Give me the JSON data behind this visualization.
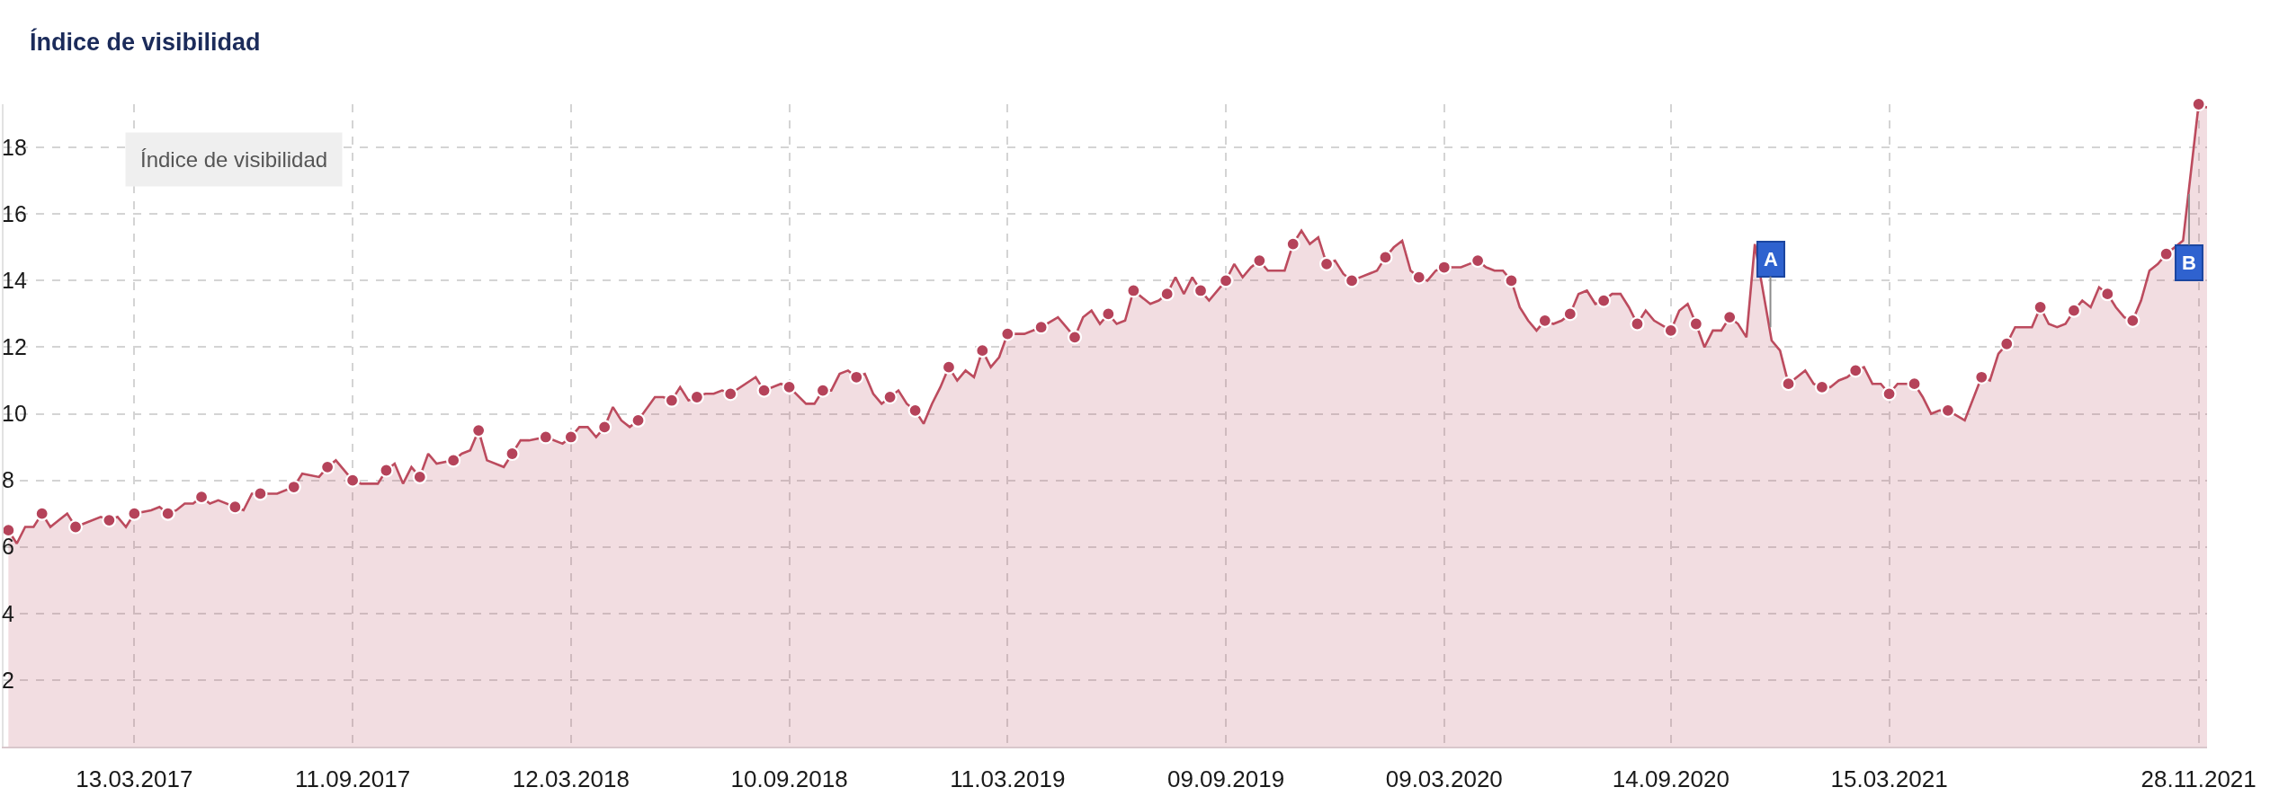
{
  "chart_data": {
    "type": "area",
    "title": "Índice de visibilidad",
    "xlim": [
      "2016-11-24",
      "2021-12-05"
    ],
    "xticks": [
      {
        "value": "2017-03-13",
        "label": "13.03.2017"
      },
      {
        "value": "2017-09-11",
        "label": "11.09.2017"
      },
      {
        "value": "2018-03-12",
        "label": "12.03.2018"
      },
      {
        "value": "2018-09-10",
        "label": "10.09.2018"
      },
      {
        "value": "2019-03-11",
        "label": "11.03.2019"
      },
      {
        "value": "2019-09-09",
        "label": "09.09.2019"
      },
      {
        "value": "2020-03-09",
        "label": "09.03.2020"
      },
      {
        "value": "2020-09-14",
        "label": "14.09.2020"
      },
      {
        "value": "2021-03-15",
        "label": "15.03.2021"
      },
      {
        "value": "2021-11-28",
        "label": "28.11.2021"
      }
    ],
    "ylim": [
      0,
      19.3
    ],
    "yticks": [
      2,
      4,
      6,
      8,
      10,
      12,
      14,
      16,
      18
    ],
    "grid": true,
    "legend": false,
    "annotations": [
      "Índice de visibilidad",
      {
        "text": "A",
        "x": "2020-12-06",
        "y": 12.6
      },
      {
        "text": "B",
        "x": "2021-11-20",
        "y": 16.6
      }
    ],
    "series": [
      {
        "color": "#bc4b5e",
        "line_style": "solid",
        "x": [
          "2016-11-28",
          "2016-12-05",
          "2016-12-12",
          "2016-12-19",
          "2016-12-26",
          "2017-01-02",
          "2017-01-09",
          "2017-01-16",
          "2017-01-23",
          "2017-01-30",
          "2017-02-13",
          "2017-02-20",
          "2017-02-27",
          "2017-03-06",
          "2017-03-13",
          "2017-03-27",
          "2017-04-03",
          "2017-04-10",
          "2017-04-17",
          "2017-04-24",
          "2017-05-01",
          "2017-05-08",
          "2017-05-15",
          "2017-05-22",
          "2017-06-05",
          "2017-06-12",
          "2017-06-19",
          "2017-06-26",
          "2017-07-03",
          "2017-07-10",
          "2017-07-24",
          "2017-07-31",
          "2017-08-14",
          "2017-08-21",
          "2017-08-28",
          "2017-09-11",
          "2017-09-18",
          "2017-10-02",
          "2017-10-09",
          "2017-10-16",
          "2017-10-23",
          "2017-10-30",
          "2017-11-06",
          "2017-11-13",
          "2017-11-20",
          "2017-12-04",
          "2017-12-11",
          "2017-12-18",
          "2017-12-25",
          "2018-01-01",
          "2018-01-15",
          "2018-01-22",
          "2018-01-29",
          "2018-02-05",
          "2018-02-19",
          "2018-03-05",
          "2018-03-12",
          "2018-03-19",
          "2018-03-26",
          "2018-04-02",
          "2018-04-09",
          "2018-04-16",
          "2018-04-23",
          "2018-04-30",
          "2018-05-07",
          "2018-05-21",
          "2018-05-28",
          "2018-06-04",
          "2018-06-11",
          "2018-06-18",
          "2018-06-25",
          "2018-07-02",
          "2018-07-09",
          "2018-07-16",
          "2018-07-23",
          "2018-08-13",
          "2018-08-20",
          "2018-09-03",
          "2018-09-10",
          "2018-09-24",
          "2018-10-01",
          "2018-10-08",
          "2018-10-15",
          "2018-10-22",
          "2018-10-29",
          "2018-11-05",
          "2018-11-12",
          "2018-11-19",
          "2018-11-26",
          "2018-12-03",
          "2018-12-10",
          "2018-12-17",
          "2018-12-24",
          "2018-12-31",
          "2019-01-07",
          "2019-01-14",
          "2019-01-21",
          "2019-01-28",
          "2019-02-04",
          "2019-02-11",
          "2019-02-18",
          "2019-02-25",
          "2019-03-04",
          "2019-03-11",
          "2019-03-25",
          "2019-04-08",
          "2019-04-22",
          "2019-04-29",
          "2019-05-06",
          "2019-05-13",
          "2019-05-20",
          "2019-05-27",
          "2019-06-03",
          "2019-06-10",
          "2019-06-17",
          "2019-06-24",
          "2019-07-08",
          "2019-07-15",
          "2019-07-22",
          "2019-07-29",
          "2019-08-05",
          "2019-08-12",
          "2019-08-19",
          "2019-08-26",
          "2019-09-02",
          "2019-09-09",
          "2019-09-16",
          "2019-09-23",
          "2019-09-30",
          "2019-10-07",
          "2019-10-14",
          "2019-10-21",
          "2019-10-28",
          "2019-11-04",
          "2019-11-11",
          "2019-11-18",
          "2019-11-25",
          "2019-12-02",
          "2019-12-09",
          "2019-12-16",
          "2019-12-23",
          "2019-12-30",
          "2020-01-13",
          "2020-01-20",
          "2020-01-27",
          "2020-02-03",
          "2020-02-10",
          "2020-02-17",
          "2020-02-24",
          "2020-03-02",
          "2020-03-09",
          "2020-03-23",
          "2020-04-06",
          "2020-04-13",
          "2020-04-20",
          "2020-04-27",
          "2020-05-04",
          "2020-05-11",
          "2020-05-18",
          "2020-05-25",
          "2020-06-01",
          "2020-06-08",
          "2020-06-15",
          "2020-06-22",
          "2020-06-29",
          "2020-07-06",
          "2020-07-13",
          "2020-07-20",
          "2020-07-27",
          "2020-08-03",
          "2020-08-10",
          "2020-08-17",
          "2020-08-24",
          "2020-08-31",
          "2020-09-14",
          "2020-09-21",
          "2020-09-28",
          "2020-10-05",
          "2020-10-12",
          "2020-10-19",
          "2020-10-26",
          "2020-11-02",
          "2020-11-09",
          "2020-11-16",
          "2020-11-23",
          "2020-12-07",
          "2020-12-14",
          "2020-12-21",
          "2021-01-04",
          "2021-01-11",
          "2021-01-18",
          "2021-01-25",
          "2021-02-01",
          "2021-02-08",
          "2021-02-15",
          "2021-02-22",
          "2021-03-01",
          "2021-03-08",
          "2021-03-15",
          "2021-03-22",
          "2021-04-05",
          "2021-04-12",
          "2021-04-19",
          "2021-04-26",
          "2021-05-03",
          "2021-05-17",
          "2021-05-31",
          "2021-06-07",
          "2021-06-14",
          "2021-06-21",
          "2021-06-28",
          "2021-07-12",
          "2021-07-19",
          "2021-07-26",
          "2021-08-02",
          "2021-08-09",
          "2021-08-16",
          "2021-08-23",
          "2021-08-30",
          "2021-09-06",
          "2021-09-13",
          "2021-09-20",
          "2021-09-27",
          "2021-10-04",
          "2021-10-11",
          "2021-10-18",
          "2021-10-25",
          "2021-11-01",
          "2021-11-15",
          "2021-11-28",
          "2021-12-05"
        ],
        "values": [
          6.5,
          6.1,
          6.6,
          6.6,
          7.0,
          6.6,
          6.8,
          7.0,
          6.6,
          6.7,
          6.9,
          6.8,
          6.9,
          6.6,
          7.0,
          7.1,
          7.2,
          7.0,
          7.1,
          7.3,
          7.3,
          7.5,
          7.3,
          7.4,
          7.2,
          7.1,
          7.6,
          7.6,
          7.6,
          7.6,
          7.8,
          8.2,
          8.1,
          8.4,
          8.6,
          8.0,
          7.9,
          7.9,
          8.3,
          8.5,
          7.9,
          8.4,
          8.1,
          8.8,
          8.5,
          8.6,
          8.8,
          8.9,
          9.5,
          8.6,
          8.4,
          8.8,
          9.2,
          9.2,
          9.3,
          9.1,
          9.3,
          9.6,
          9.6,
          9.3,
          9.6,
          10.2,
          9.8,
          9.6,
          9.8,
          10.5,
          10.5,
          10.4,
          10.8,
          10.4,
          10.5,
          10.6,
          10.6,
          10.7,
          10.6,
          11.1,
          10.7,
          10.9,
          10.8,
          10.3,
          10.3,
          10.7,
          10.7,
          11.2,
          11.3,
          11.1,
          11.2,
          10.6,
          10.3,
          10.5,
          10.7,
          10.3,
          10.1,
          9.7,
          10.3,
          10.8,
          11.4,
          11.0,
          11.3,
          11.1,
          11.9,
          11.4,
          11.7,
          12.4,
          12.4,
          12.6,
          12.9,
          12.6,
          12.3,
          12.9,
          13.1,
          12.7,
          13.0,
          12.7,
          12.8,
          13.7,
          13.3,
          13.4,
          13.6,
          14.1,
          13.6,
          14.1,
          13.7,
          13.4,
          13.7,
          14.0,
          14.5,
          14.1,
          14.4,
          14.6,
          14.3,
          14.3,
          14.3,
          15.1,
          15.5,
          15.1,
          15.3,
          14.5,
          14.6,
          14.2,
          14.0,
          14.1,
          14.3,
          14.7,
          15.0,
          15.2,
          14.3,
          14.1,
          14.0,
          14.3,
          14.4,
          14.4,
          14.6,
          14.4,
          14.3,
          14.3,
          14.0,
          13.2,
          12.8,
          12.5,
          12.8,
          12.7,
          12.8,
          13.0,
          13.6,
          13.7,
          13.3,
          13.4,
          13.6,
          13.6,
          13.2,
          12.7,
          13.1,
          12.8,
          12.5,
          13.1,
          13.3,
          12.7,
          12.0,
          12.5,
          12.5,
          12.9,
          12.7,
          12.3,
          15.1,
          12.2,
          11.9,
          10.9,
          11.3,
          10.9,
          10.8,
          10.8,
          11.0,
          11.1,
          11.3,
          11.4,
          10.9,
          10.9,
          10.6,
          10.9,
          10.9,
          10.5,
          10.0,
          10.1,
          10.1,
          9.8,
          11.1,
          11.0,
          11.8,
          12.1,
          12.6,
          12.6,
          13.2,
          12.7,
          12.6,
          12.7,
          13.1,
          13.4,
          13.2,
          13.8,
          13.6,
          13.2,
          12.9,
          12.8,
          13.4,
          14.3,
          14.5,
          14.8,
          15.2,
          19.3,
          19.2
        ]
      },
      {
        "type": "scatter",
        "color": "#b5435a",
        "marker": "circle",
        "x": [
          "2016-11-28",
          "2016-12-26",
          "2017-01-23",
          "2017-02-20",
          "2017-03-13",
          "2017-04-10",
          "2017-05-08",
          "2017-06-05",
          "2017-06-26",
          "2017-07-24",
          "2017-08-21",
          "2017-09-11",
          "2017-10-09",
          "2017-11-06",
          "2017-12-04",
          "2017-12-25",
          "2018-01-22",
          "2018-02-19",
          "2018-03-12",
          "2018-04-09",
          "2018-05-07",
          "2018-06-04",
          "2018-06-25",
          "2018-07-23",
          "2018-08-20",
          "2018-09-10",
          "2018-10-08",
          "2018-11-05",
          "2018-12-03",
          "2018-12-24",
          "2019-01-21",
          "2019-02-18",
          "2019-03-11",
          "2019-04-08",
          "2019-05-06",
          "2019-06-03",
          "2019-06-24",
          "2019-07-22",
          "2019-08-19",
          "2019-09-09",
          "2019-10-07",
          "2019-11-04",
          "2019-12-02",
          "2019-12-23",
          "2020-01-20",
          "2020-02-17",
          "2020-03-09",
          "2020-04-06",
          "2020-05-04",
          "2020-06-01",
          "2020-06-22",
          "2020-07-20",
          "2020-08-17",
          "2020-09-14",
          "2020-10-05",
          "2020-11-02",
          "2020-12-21",
          "2021-01-18",
          "2021-02-15",
          "2021-03-15",
          "2021-04-05",
          "2021-05-03",
          "2021-05-31",
          "2021-06-21",
          "2021-07-19",
          "2021-08-16",
          "2021-09-13",
          "2021-10-04",
          "2021-11-01",
          "2021-11-28"
        ],
        "values": [
          6.5,
          7.0,
          6.6,
          6.8,
          7.0,
          7.0,
          7.5,
          7.2,
          7.6,
          7.8,
          8.4,
          8.0,
          8.3,
          8.1,
          8.6,
          9.5,
          8.8,
          9.3,
          9.3,
          9.6,
          9.8,
          10.4,
          10.5,
          10.6,
          10.7,
          10.8,
          10.7,
          11.1,
          10.5,
          10.1,
          11.4,
          11.9,
          12.4,
          12.6,
          12.3,
          13.0,
          13.7,
          13.6,
          13.7,
          14.0,
          14.6,
          15.1,
          14.5,
          14.0,
          14.7,
          14.1,
          14.4,
          14.6,
          14.0,
          12.8,
          13.0,
          13.4,
          12.7,
          12.5,
          12.7,
          12.9,
          10.9,
          10.8,
          11.3,
          10.6,
          10.9,
          10.1,
          11.1,
          12.1,
          13.2,
          13.1,
          13.6,
          12.8,
          14.8,
          19.3
        ]
      }
    ]
  }
}
